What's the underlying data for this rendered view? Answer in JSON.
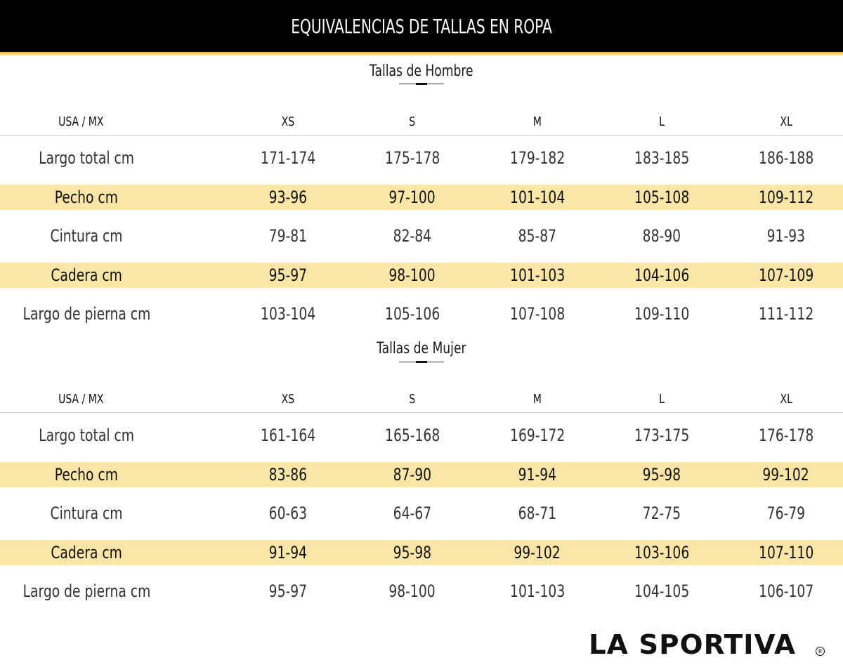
{
  "header": {
    "title": "EQUIVALENCIAS DE TALLAS EN ROPA"
  },
  "columns": [
    "USA / MX",
    "XS",
    "S",
    "M",
    "L",
    "XL"
  ],
  "men": {
    "title": "Tallas de Hombre",
    "rows": [
      {
        "label": "Largo total cm",
        "values": [
          "171-174",
          "175-178",
          "179-182",
          "183-185",
          "186-188"
        ],
        "highlight": false
      },
      {
        "label": "Pecho cm",
        "values": [
          "93-96",
          "97-100",
          "101-104",
          "105-108",
          "109-112"
        ],
        "highlight": true
      },
      {
        "label": "Cintura cm",
        "values": [
          "79-81",
          "82-84",
          "85-87",
          "88-90",
          "91-93"
        ],
        "highlight": false
      },
      {
        "label": "Cadera cm",
        "values": [
          "95-97",
          "98-100",
          "101-103",
          "104-106",
          "107-109"
        ],
        "highlight": true
      },
      {
        "label": "Largo de pierna cm",
        "values": [
          "103-104",
          "105-106",
          "107-108",
          "109-110",
          "111-112"
        ],
        "highlight": false
      }
    ]
  },
  "women": {
    "title": "Tallas de Mujer",
    "rows": [
      {
        "label": "Largo total cm",
        "values": [
          "161-164",
          "165-168",
          "169-172",
          "173-175",
          "176-178"
        ],
        "highlight": false
      },
      {
        "label": "Pecho cm",
        "values": [
          "83-86",
          "87-90",
          "91-94",
          "95-98",
          "99-102"
        ],
        "highlight": true
      },
      {
        "label": "Cintura cm",
        "values": [
          "60-63",
          "64-67",
          "68-71",
          "72-75",
          "76-79"
        ],
        "highlight": false
      },
      {
        "label": "Cadera cm",
        "values": [
          "91-94",
          "95-98",
          "99-102",
          "103-106",
          "107-110"
        ],
        "highlight": true
      },
      {
        "label": "Largo de pierna cm",
        "values": [
          "95-97",
          "98-100",
          "101-103",
          "104-105",
          "106-107"
        ],
        "highlight": false
      }
    ]
  },
  "logo": {
    "text": "LA SPORTIVA",
    "registered": "®"
  },
  "colors": {
    "header_bg": "#000000",
    "stripe": "#f4b92a",
    "highlight_row": "#fbe6a8"
  }
}
